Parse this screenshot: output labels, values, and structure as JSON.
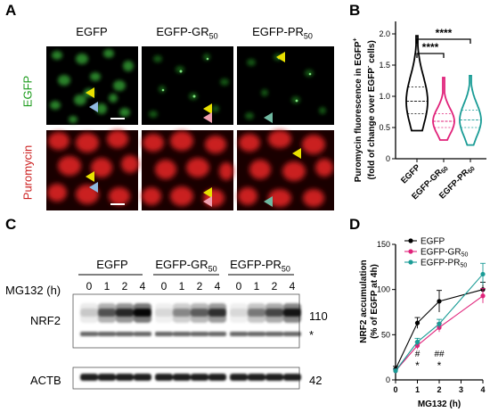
{
  "panels": {
    "A": {
      "letter": "A",
      "columns": [
        "EGFP",
        "EGFP-GR",
        "EGFP-PR"
      ],
      "column_subscript": "50",
      "rows": [
        "EGFP",
        "Puromycin"
      ],
      "colors": {
        "egfp": "#1a9a1a",
        "puromycin": "#cc1f1f"
      }
    },
    "B": {
      "letter": "B",
      "ylabel_line1": "Puromycin fluorescence in EGFP",
      "ylabel_sup1": "+",
      "ylabel_line2": "(fold of change over EGFP",
      "ylabel_sup2": "-",
      "ylabel_line2_end": " cells)",
      "sig": [
        "****",
        "****"
      ]
    },
    "C": {
      "letter": "C",
      "groups": [
        "EGFP",
        "EGFP-GR",
        "EGFP-PR"
      ],
      "subscript": "50",
      "mg132_label": "MG132 (h)",
      "timepoints": [
        "0",
        "1",
        "2",
        "4"
      ],
      "blots": [
        "NRF2",
        "ACTB"
      ],
      "markers": [
        "110",
        "*",
        "42"
      ]
    },
    "D": {
      "letter": "D",
      "sig_row1": [
        "#",
        "##"
      ],
      "sig_row2": [
        "*",
        "*"
      ]
    }
  },
  "chart_data": [
    {
      "type": "violin",
      "panel": "B",
      "categories": [
        "EGFP",
        "EGFP-GR50",
        "EGFP-PR50"
      ],
      "yticks": [
        0,
        0.5,
        1.0,
        1.5,
        2.0
      ],
      "ytick_labels": [
        "0",
        "0.5",
        "1.0",
        "1.5",
        "2.0"
      ],
      "ylim": [
        0,
        2.2
      ],
      "medians": [
        0.92,
        0.6,
        0.62
      ],
      "quartiles": [
        [
          0.72,
          1.15
        ],
        [
          0.5,
          0.72
        ],
        [
          0.5,
          0.78
        ]
      ],
      "ranges": [
        [
          0.45,
          1.97
        ],
        [
          0.3,
          1.3
        ],
        [
          0.22,
          1.33
        ]
      ],
      "colors": [
        "#000000",
        "#e0227a",
        "#1a9c96"
      ],
      "xlabels": [
        "EGFP",
        "EGFP-GR",
        "EGFP-PR"
      ],
      "xlabel_subscript": "50",
      "ylabel": "Puromycin fluorescence in EGFP+ (fold of change over EGFP- cells)"
    },
    {
      "type": "line",
      "panel": "D",
      "x": [
        0,
        1,
        2,
        4
      ],
      "xticks": [
        0,
        1,
        2,
        3,
        4
      ],
      "xlabel": "MG132 (h)",
      "ylabel_line1": "NRF2 accumulation",
      "ylabel_line2": "(% of EGFP at 4h)",
      "yticks": [
        0,
        50,
        100,
        150
      ],
      "xlim": [
        0,
        4
      ],
      "ylim": [
        0,
        150
      ],
      "legend": "top-left",
      "series": [
        {
          "name": "EGFP",
          "values": [
            12,
            63,
            87,
            100
          ],
          "errors": [
            3,
            6,
            12,
            8
          ],
          "color": "#000000"
        },
        {
          "name": "EGFP-GR50",
          "values": [
            10,
            38,
            58,
            93
          ],
          "errors": [
            2,
            4,
            5,
            8
          ],
          "color": "#e0227a"
        },
        {
          "name": "EGFP-PR50",
          "values": [
            10,
            42,
            62,
            117
          ],
          "errors": [
            2,
            4,
            5,
            12
          ],
          "color": "#1a9c96"
        }
      ],
      "legend_labels": [
        "EGFP",
        "EGFP-GR",
        "EGFP-PR"
      ],
      "legend_subscript": "50"
    }
  ]
}
